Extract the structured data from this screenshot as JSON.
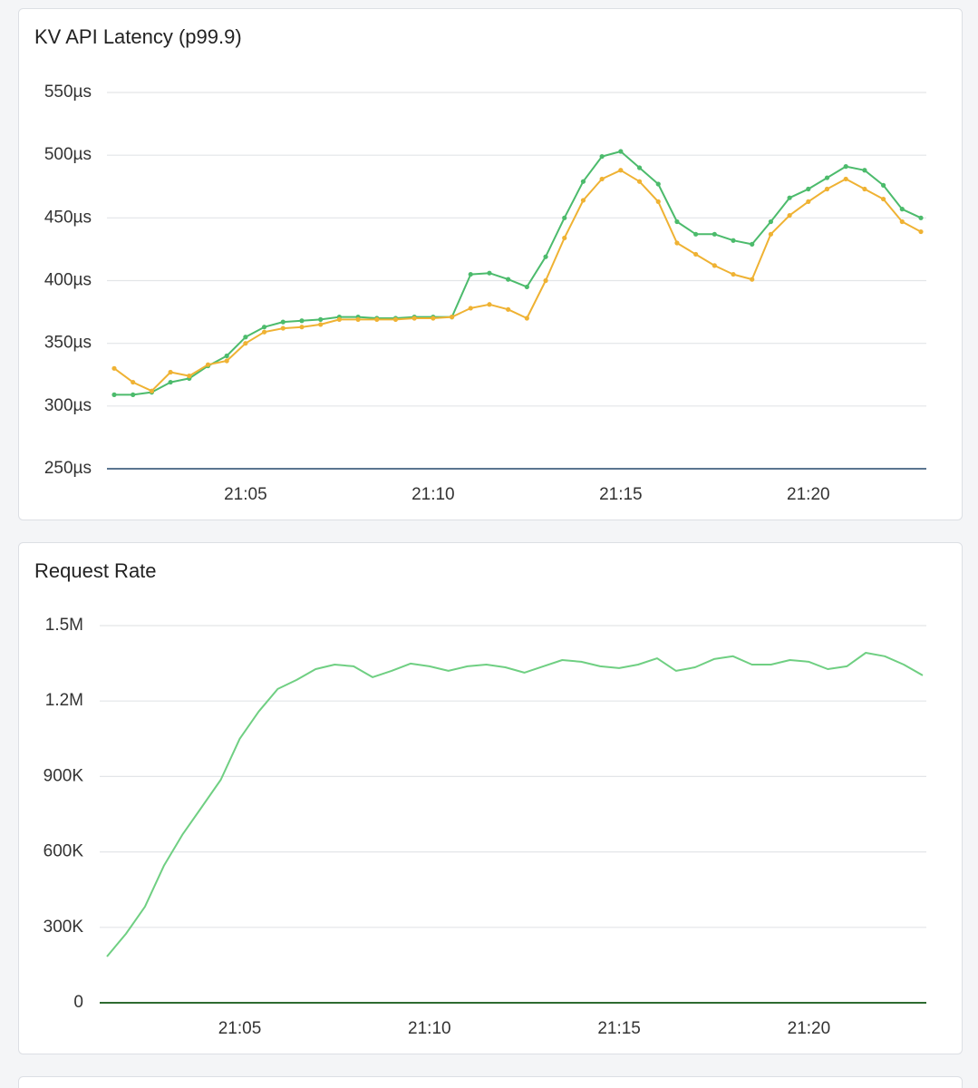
{
  "chart_data": [
    {
      "type": "line",
      "title": "KV API Latency (p99.9)",
      "markers": true,
      "grid": true,
      "categories": [
        null,
        null,
        null,
        null,
        null,
        null,
        null,
        "21:05",
        null,
        null,
        null,
        null,
        null,
        null,
        null,
        null,
        null,
        "21:10",
        null,
        null,
        null,
        null,
        null,
        null,
        null,
        null,
        null,
        "21:15",
        null,
        null,
        null,
        null,
        null,
        null,
        null,
        null,
        null,
        "21:20",
        null,
        null,
        null,
        null,
        null,
        null
      ],
      "ylim": [
        250,
        550
      ],
      "yticks": [
        {
          "value": 250,
          "label": "250µs"
        },
        {
          "value": 300,
          "label": "300µs"
        },
        {
          "value": 350,
          "label": "350µs"
        },
        {
          "value": 400,
          "label": "400µs"
        },
        {
          "value": 450,
          "label": "450µs"
        },
        {
          "value": 500,
          "label": "500µs"
        },
        {
          "value": 550,
          "label": "550µs"
        }
      ],
      "series": [
        {
          "color": "#4cbb6c",
          "values": [
            309,
            309,
            311,
            319,
            322,
            332,
            340,
            355,
            363,
            367,
            368,
            369,
            371,
            371,
            370,
            370,
            371,
            371,
            371,
            405,
            406,
            401,
            395,
            419,
            450,
            479,
            499,
            503,
            490,
            477,
            447,
            437,
            437,
            432,
            429,
            447,
            466,
            473,
            482,
            491,
            488,
            476,
            457,
            450
          ]
        },
        {
          "color": "#efb233",
          "values": [
            330,
            319,
            312,
            327,
            324,
            333,
            336,
            350,
            359,
            362,
            363,
            365,
            369,
            369,
            369,
            369,
            370,
            370,
            371,
            378,
            381,
            377,
            370,
            400,
            434,
            464,
            481,
            488,
            479,
            463,
            430,
            421,
            412,
            405,
            401,
            437,
            452,
            463,
            473,
            481,
            473,
            465,
            447,
            439
          ]
        }
      ]
    },
    {
      "type": "line",
      "title": "Request Rate",
      "markers": false,
      "grid": true,
      "categories": [
        null,
        null,
        null,
        null,
        null,
        null,
        null,
        "21:05",
        null,
        null,
        null,
        null,
        null,
        null,
        null,
        null,
        null,
        "21:10",
        null,
        null,
        null,
        null,
        null,
        null,
        null,
        null,
        null,
        "21:15",
        null,
        null,
        null,
        null,
        null,
        null,
        null,
        null,
        null,
        "21:20",
        null,
        null,
        null,
        null,
        null,
        null
      ],
      "ylim": [
        0,
        1500000
      ],
      "yticks": [
        0,
        {
          "value": 300000,
          "label": "300K"
        },
        {
          "value": 600000,
          "label": "600K"
        },
        {
          "value": 900000,
          "label": "900K"
        },
        {
          "value": 1200000,
          "label": "1.2M"
        },
        {
          "value": 1500000,
          "label": "1.5M"
        }
      ],
      "series": [
        {
          "color": "#6fcf82",
          "values": [
            184000,
            274000,
            382000,
            545000,
            671000,
            779000,
            887000,
            1050000,
            1158000,
            1248000,
            1284000,
            1327000,
            1345000,
            1338000,
            1295000,
            1320000,
            1349000,
            1338000,
            1320000,
            1338000,
            1345000,
            1334000,
            1313000,
            1338000,
            1363000,
            1356000,
            1338000,
            1331000,
            1345000,
            1370000,
            1320000,
            1334000,
            1367000,
            1378000,
            1345000,
            1345000,
            1363000,
            1356000,
            1327000,
            1338000,
            1392000,
            1378000,
            1345000,
            1302000
          ]
        }
      ]
    }
  ]
}
